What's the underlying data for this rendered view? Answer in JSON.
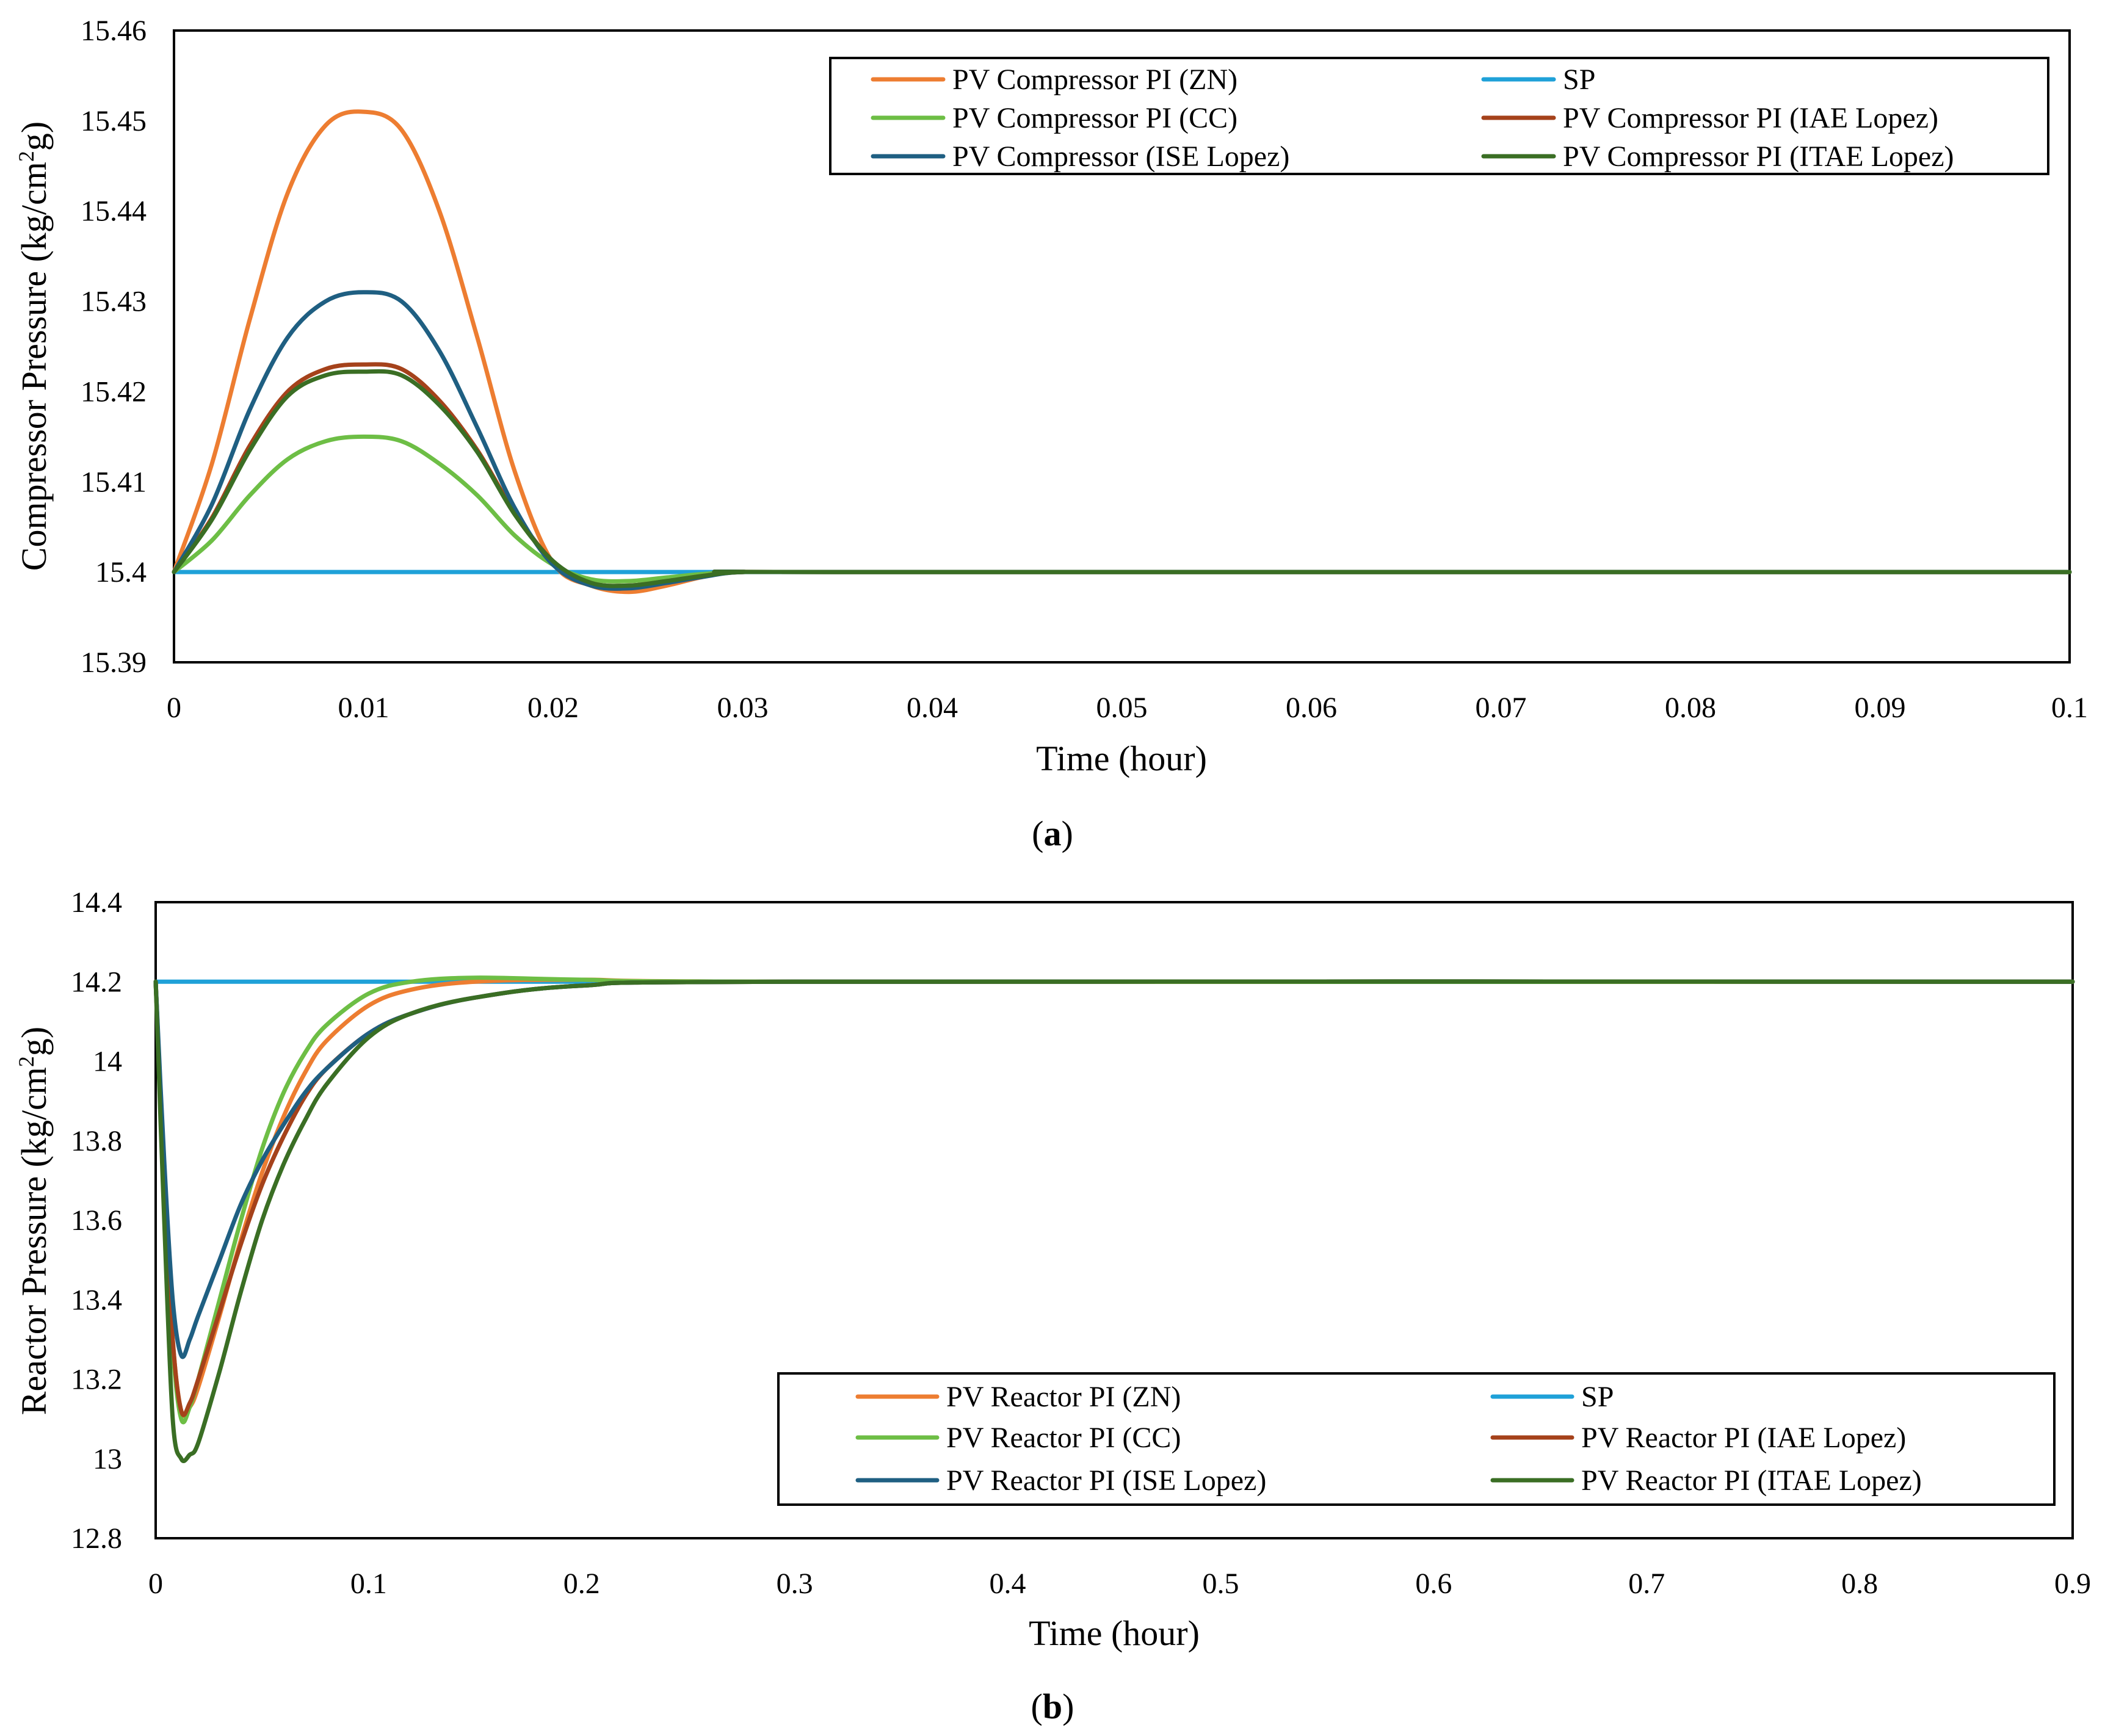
{
  "chart_data": [
    {
      "type": "line",
      "panel_label": "a",
      "xlabel": "Time (hour)",
      "ylabel_main": "Compressor Pressure (kg/cm",
      "ylabel_sup": "2",
      "ylabel_tail": "g)",
      "xlim": [
        0,
        0.1
      ],
      "ylim": [
        15.39,
        15.46
      ],
      "x_ticks": [
        0,
        0.01,
        0.02,
        0.03,
        0.04,
        0.05,
        0.06,
        0.07,
        0.08,
        0.09,
        0.1
      ],
      "x_tick_labels": [
        "0",
        "0.01",
        "0.02",
        "0.03",
        "0.04",
        "0.05",
        "0.06",
        "0.07",
        "0.08",
        "0.09",
        "0.1"
      ],
      "y_ticks": [
        15.39,
        15.4,
        15.41,
        15.42,
        15.43,
        15.44,
        15.45,
        15.46
      ],
      "y_tick_labels": [
        "15.39",
        "15.4",
        "15.41",
        "15.42",
        "15.43",
        "15.44",
        "15.45",
        "15.46"
      ],
      "grid": false,
      "legend_position": "top-right",
      "series": [
        {
          "name": "PV Compressor PI (ZN)",
          "color": "#ED7D31",
          "x": [
            0,
            0.002,
            0.004,
            0.006,
            0.008,
            0.01,
            0.012,
            0.014,
            0.016,
            0.018,
            0.02,
            0.022,
            0.024,
            0.026,
            0.028,
            0.03,
            0.035,
            0.1
          ],
          "y": [
            15.4,
            15.412,
            15.428,
            15.442,
            15.4495,
            15.451,
            15.449,
            15.44,
            15.426,
            15.411,
            15.401,
            15.3985,
            15.3978,
            15.3985,
            15.3995,
            15.4,
            15.4,
            15.4
          ]
        },
        {
          "name": "SP",
          "color": "#1FA1D8",
          "x": [
            0,
            0.1
          ],
          "y": [
            15.4,
            15.4
          ]
        },
        {
          "name": "PV Compressor PI (CC)",
          "color": "#6DBE45",
          "x": [
            0,
            0.002,
            0.004,
            0.006,
            0.008,
            0.01,
            0.012,
            0.014,
            0.016,
            0.018,
            0.02,
            0.022,
            0.024,
            0.026,
            0.028,
            0.03,
            0.035,
            0.1
          ],
          "y": [
            15.4,
            15.4035,
            15.4085,
            15.4125,
            15.4145,
            15.415,
            15.4145,
            15.412,
            15.4085,
            15.404,
            15.4008,
            15.3992,
            15.399,
            15.3994,
            15.3998,
            15.4,
            15.4,
            15.4
          ]
        },
        {
          "name": "PV Compressor PI (IAE Lopez)",
          "color": "#A5421B",
          "x": [
            0,
            0.002,
            0.004,
            0.006,
            0.008,
            0.01,
            0.012,
            0.014,
            0.016,
            0.018,
            0.02,
            0.022,
            0.024,
            0.026,
            0.028,
            0.03,
            0.035,
            0.1
          ],
          "y": [
            15.4,
            15.406,
            15.414,
            15.42,
            15.4225,
            15.423,
            15.4225,
            15.419,
            15.4135,
            15.4065,
            15.4012,
            15.3988,
            15.3985,
            15.399,
            15.3996,
            15.4,
            15.4,
            15.4
          ]
        },
        {
          "name": "PV Compressor (ISE Lopez)",
          "color": "#1F5F82",
          "x": [
            0,
            0.002,
            0.004,
            0.006,
            0.008,
            0.01,
            0.012,
            0.014,
            0.016,
            0.018,
            0.02,
            0.022,
            0.024,
            0.026,
            0.028,
            0.03,
            0.035,
            0.1
          ],
          "y": [
            15.4,
            15.4075,
            15.418,
            15.426,
            15.43,
            15.431,
            15.43,
            15.4245,
            15.416,
            15.407,
            15.4008,
            15.3985,
            15.3982,
            15.3988,
            15.3995,
            15.4,
            15.4,
            15.4
          ]
        },
        {
          "name": "PV Compressor PI (ITAE Lopez)",
          "color": "#3A6E24",
          "x": [
            0,
            0.002,
            0.004,
            0.006,
            0.008,
            0.01,
            0.012,
            0.014,
            0.016,
            0.018,
            0.02,
            0.022,
            0.024,
            0.026,
            0.028,
            0.03,
            0.035,
            0.1
          ],
          "y": [
            15.4,
            15.4058,
            15.4135,
            15.4195,
            15.4218,
            15.4222,
            15.4218,
            15.4185,
            15.4133,
            15.4063,
            15.4012,
            15.3988,
            15.3985,
            15.399,
            15.3996,
            15.4,
            15.4,
            15.4
          ]
        }
      ]
    },
    {
      "type": "line",
      "panel_label": "b",
      "xlabel": "Time (hour)",
      "ylabel_main": "Reactor Pressure (kg/cm",
      "ylabel_sup": "2",
      "ylabel_tail": "g)",
      "xlim": [
        0,
        0.9
      ],
      "ylim": [
        12.8,
        14.4
      ],
      "x_ticks": [
        0,
        0.1,
        0.2,
        0.3,
        0.4,
        0.5,
        0.6,
        0.7,
        0.8,
        0.9
      ],
      "x_tick_labels": [
        "0",
        "0.1",
        "0.2",
        "0.3",
        "0.4",
        "0.5",
        "0.6",
        "0.7",
        "0.8",
        "0.9"
      ],
      "y_ticks": [
        12.8,
        13,
        13.2,
        13.4,
        13.6,
        13.8,
        14,
        14.2,
        14.4
      ],
      "y_tick_labels": [
        "12.8",
        "13",
        "13.2",
        "13.4",
        "13.6",
        "13.8",
        "14",
        "14.2",
        "14.4"
      ],
      "grid": false,
      "legend_position": "bottom-right",
      "series": [
        {
          "name": "PV Reactor PI (ZN)",
          "color": "#ED7D31",
          "x": [
            0,
            0.004,
            0.008,
            0.012,
            0.016,
            0.02,
            0.03,
            0.04,
            0.05,
            0.06,
            0.07,
            0.08,
            0.1,
            0.12,
            0.15,
            0.2,
            0.3,
            0.9
          ],
          "y": [
            14.2,
            13.7,
            13.3,
            13.12,
            13.13,
            13.18,
            13.36,
            13.55,
            13.72,
            13.86,
            13.97,
            14.05,
            14.14,
            14.18,
            14.2,
            14.205,
            14.2,
            14.2
          ]
        },
        {
          "name": "SP",
          "color": "#1FA1D8",
          "x": [
            0,
            0.9
          ],
          "y": [
            14.2,
            14.2
          ]
        },
        {
          "name": "PV Reactor PI (CC)",
          "color": "#6DBE45",
          "x": [
            0,
            0.004,
            0.008,
            0.012,
            0.016,
            0.02,
            0.03,
            0.04,
            0.05,
            0.06,
            0.07,
            0.08,
            0.1,
            0.12,
            0.15,
            0.2,
            0.3,
            0.9
          ],
          "y": [
            14.2,
            13.7,
            13.28,
            13.1,
            13.13,
            13.2,
            13.4,
            13.6,
            13.78,
            13.92,
            14.02,
            14.09,
            14.17,
            14.2,
            14.21,
            14.205,
            14.2,
            14.2
          ]
        },
        {
          "name": "PV Reactor PI (IAE Lopez)",
          "color": "#A5421B",
          "x": [
            0,
            0.004,
            0.008,
            0.012,
            0.016,
            0.02,
            0.03,
            0.04,
            0.05,
            0.06,
            0.07,
            0.08,
            0.1,
            0.12,
            0.15,
            0.2,
            0.3,
            0.9
          ],
          "y": [
            14.2,
            13.7,
            13.3,
            13.12,
            13.14,
            13.2,
            13.37,
            13.54,
            13.69,
            13.81,
            13.91,
            13.98,
            14.07,
            14.12,
            14.16,
            14.19,
            14.2,
            14.2
          ]
        },
        {
          "name": "PV Reactor PI (ISE Lopez)",
          "color": "#1F5F82",
          "x": [
            0,
            0.004,
            0.008,
            0.012,
            0.016,
            0.02,
            0.03,
            0.04,
            0.05,
            0.06,
            0.07,
            0.08,
            0.1,
            0.12,
            0.15,
            0.2,
            0.3,
            0.9
          ],
          "y": [
            14.2,
            13.75,
            13.4,
            13.26,
            13.3,
            13.36,
            13.5,
            13.64,
            13.75,
            13.84,
            13.92,
            13.98,
            14.07,
            14.12,
            14.16,
            14.19,
            14.2,
            14.2
          ]
        },
        {
          "name": "PV Reactor PI (ITAE Lopez)",
          "color": "#3A6E24",
          "x": [
            0,
            0.004,
            0.008,
            0.012,
            0.016,
            0.02,
            0.03,
            0.04,
            0.05,
            0.06,
            0.07,
            0.08,
            0.1,
            0.12,
            0.15,
            0.2,
            0.3,
            0.9
          ],
          "y": [
            14.2,
            13.6,
            13.1,
            13.0,
            13.01,
            13.04,
            13.22,
            13.42,
            13.6,
            13.74,
            13.85,
            13.94,
            14.06,
            14.12,
            14.16,
            14.19,
            14.2,
            14.2
          ]
        }
      ]
    }
  ]
}
